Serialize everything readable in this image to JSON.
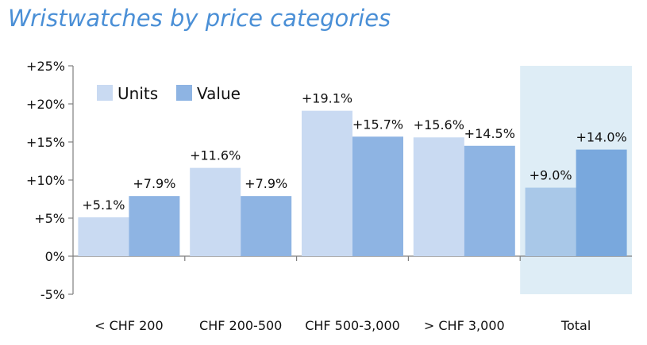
{
  "chart_data": {
    "type": "bar",
    "title": "Wristwatches by price categories",
    "categories": [
      "< CHF 200",
      "CHF 200-500",
      "CHF 500-3,000",
      "> CHF 3,000",
      "Total"
    ],
    "series": [
      {
        "name": "Units",
        "values": [
          5.1,
          11.6,
          19.1,
          15.6,
          9.0
        ],
        "labels": [
          "+5.1%",
          "+11.6%",
          "+19.1%",
          "+15.6%",
          "+9.0%"
        ]
      },
      {
        "name": "Value",
        "values": [
          7.9,
          7.9,
          15.7,
          14.5,
          14.0
        ],
        "labels": [
          "+7.9%",
          "+7.9%",
          "+15.7%",
          "+14.5%",
          "+14.0%"
        ]
      }
    ],
    "ylim": [
      -5,
      25
    ],
    "yticks": [
      25,
      20,
      15,
      10,
      5,
      0,
      -5
    ],
    "ytick_labels": [
      "+25%",
      "+20%",
      "+15%",
      "+10%",
      "+5%",
      "0%",
      "-5%"
    ],
    "xlabel": "",
    "ylabel": "",
    "legend_position": "top-left",
    "highlighted_category": "Total",
    "colors": {
      "units": "#c9daf2",
      "value": "#8eb4e3",
      "units_total": "#a9c8e8",
      "value_total": "#79a8dd",
      "highlight_bg": "#deedf6",
      "title": "#4a8fd6",
      "axis": "#7f7f7f"
    }
  }
}
